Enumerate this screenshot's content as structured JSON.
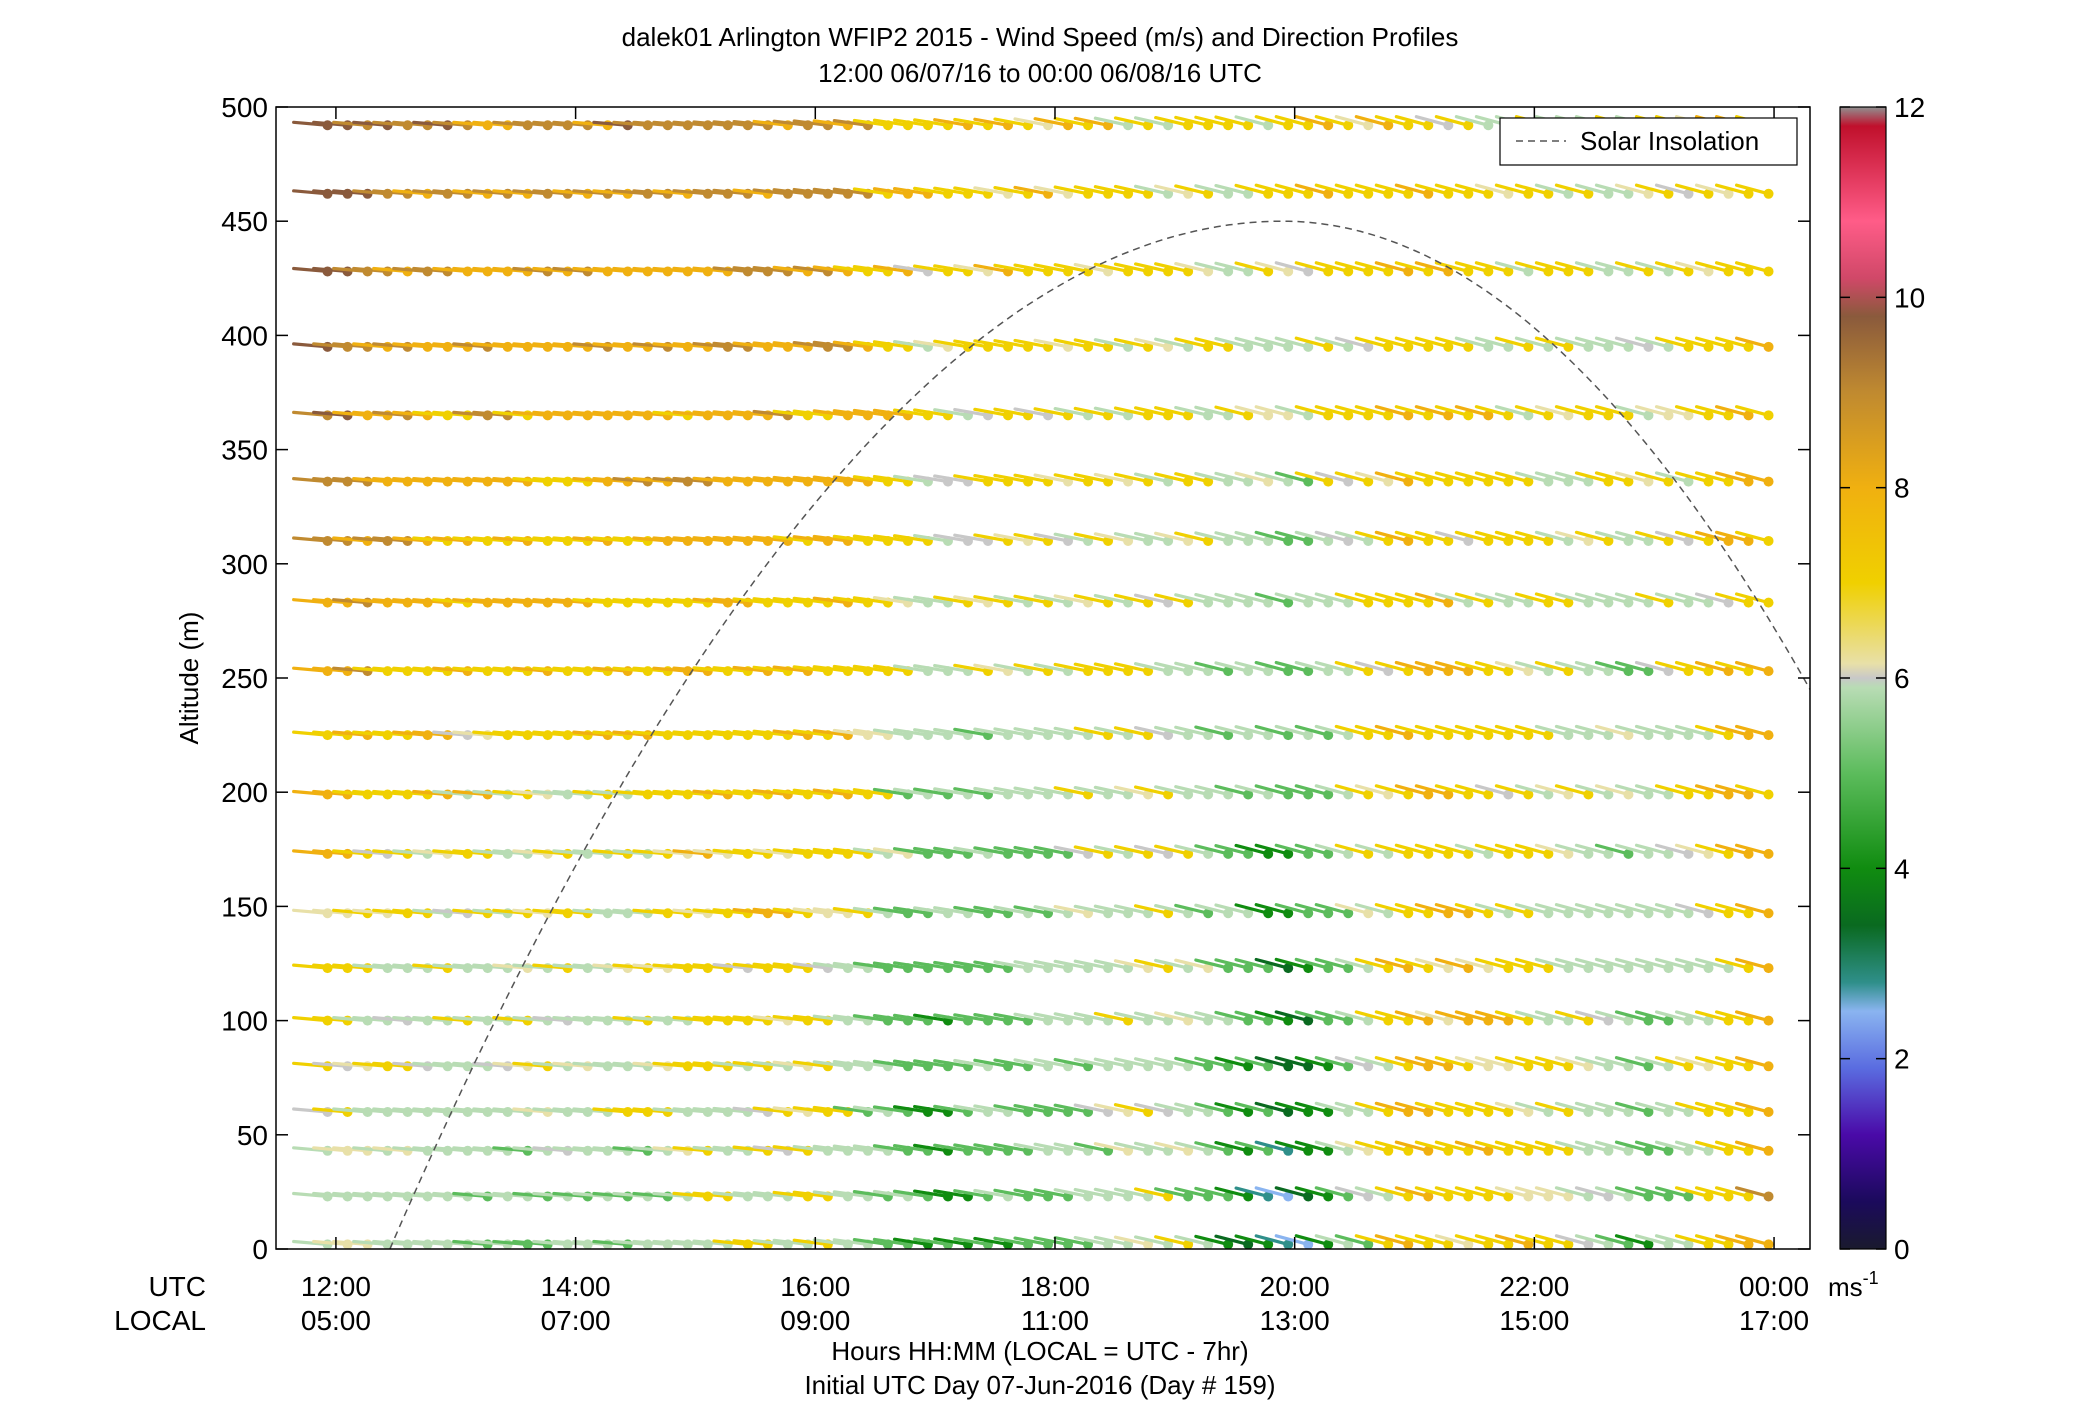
{
  "chart_data": {
    "type": "wind-barb-profile",
    "title": "dalek01 Arlington WFIP2 2015 - Wind Speed (m/s) and Direction Profiles",
    "subtitle": "12:00 06/07/16 to 00:00 06/08/16  UTC",
    "ylabel": "Altitude (m)",
    "xlabel": "Hours HH:MM  (LOCAL = UTC - 7hr)",
    "xlabel2": "Initial UTC Day 07-Jun-2016 (Day # 159)",
    "row_label_utc": "UTC",
    "row_label_local": "LOCAL",
    "xlim_hours": [
      11.5,
      24.3
    ],
    "ylim": [
      0,
      500
    ],
    "yticks": [
      0,
      50,
      100,
      150,
      200,
      250,
      300,
      350,
      400,
      450,
      500
    ],
    "xticks": [
      {
        "hour": 12,
        "utc": "12:00",
        "local": "05:00"
      },
      {
        "hour": 14,
        "utc": "14:00",
        "local": "07:00"
      },
      {
        "hour": 16,
        "utc": "16:00",
        "local": "09:00"
      },
      {
        "hour": 18,
        "utc": "18:00",
        "local": "11:00"
      },
      {
        "hour": 20,
        "utc": "20:00",
        "local": "13:00"
      },
      {
        "hour": 22,
        "utc": "22:00",
        "local": "15:00"
      },
      {
        "hour": 24,
        "utc": "00:00",
        "local": "17:00"
      }
    ],
    "altitudes": [
      2,
      23,
      43,
      60,
      80,
      100,
      123,
      147,
      173,
      199,
      225,
      253,
      283,
      310,
      336,
      365,
      395,
      428,
      462,
      492
    ],
    "time_step_hours": 0.167,
    "time_start_hour": 11.93,
    "time_end_hour": 24.0,
    "speed_profile_ms": {
      "hours": [
        12,
        13,
        14,
        15,
        16,
        17,
        18,
        19,
        20,
        21,
        22,
        23,
        24
      ],
      "at_0m": [
        5.5,
        5.0,
        5.0,
        5.5,
        6.0,
        4.0,
        4.5,
        6.0,
        2.5,
        7.0,
        6.5,
        4.5,
        7.5
      ],
      "at_500m": [
        9.5,
        8.5,
        8.3,
        8.5,
        8.2,
        7.0,
        6.8,
        6.0,
        6.6,
        6.8,
        5.8,
        6.2,
        7.2
      ]
    },
    "direction_deg": {
      "evening_dir": 250,
      "morning_dir": 265
    },
    "solar_insolation": {
      "legend": "Solar Insolation",
      "rise_hour": 12.45,
      "peak_hour": 19.9,
      "peak_value": 450,
      "axis_end_value": 245
    },
    "colorbar": {
      "min": 0,
      "max": 12,
      "ticks": [
        0,
        2,
        4,
        6,
        8,
        10,
        12
      ],
      "unit_label": "ms",
      "unit_exponent": "-1",
      "stops": [
        {
          "v": 0.0,
          "color": "#1a1a2e"
        },
        {
          "v": 0.5,
          "color": "#1b0a5c"
        },
        {
          "v": 1.2,
          "color": "#4a0aa8"
        },
        {
          "v": 1.9,
          "color": "#5a6ce0"
        },
        {
          "v": 2.5,
          "color": "#8ab4f0"
        },
        {
          "v": 2.8,
          "color": "#2f8f8a"
        },
        {
          "v": 3.4,
          "color": "#0a6a20"
        },
        {
          "v": 4.0,
          "color": "#108c10"
        },
        {
          "v": 5.0,
          "color": "#5cbc5c"
        },
        {
          "v": 5.9,
          "color": "#b8dcb4"
        },
        {
          "v": 6.0,
          "color": "#c8c8c8"
        },
        {
          "v": 6.15,
          "color": "#e8e0a8"
        },
        {
          "v": 7.0,
          "color": "#f0d000"
        },
        {
          "v": 8.0,
          "color": "#f0b010"
        },
        {
          "v": 9.0,
          "color": "#c08a30"
        },
        {
          "v": 9.8,
          "color": "#8a5a3c"
        },
        {
          "v": 10.2,
          "color": "#d04868"
        },
        {
          "v": 10.8,
          "color": "#ff5c88"
        },
        {
          "v": 11.8,
          "color": "#c0102c"
        },
        {
          "v": 12.0,
          "color": "#909090"
        }
      ]
    }
  }
}
